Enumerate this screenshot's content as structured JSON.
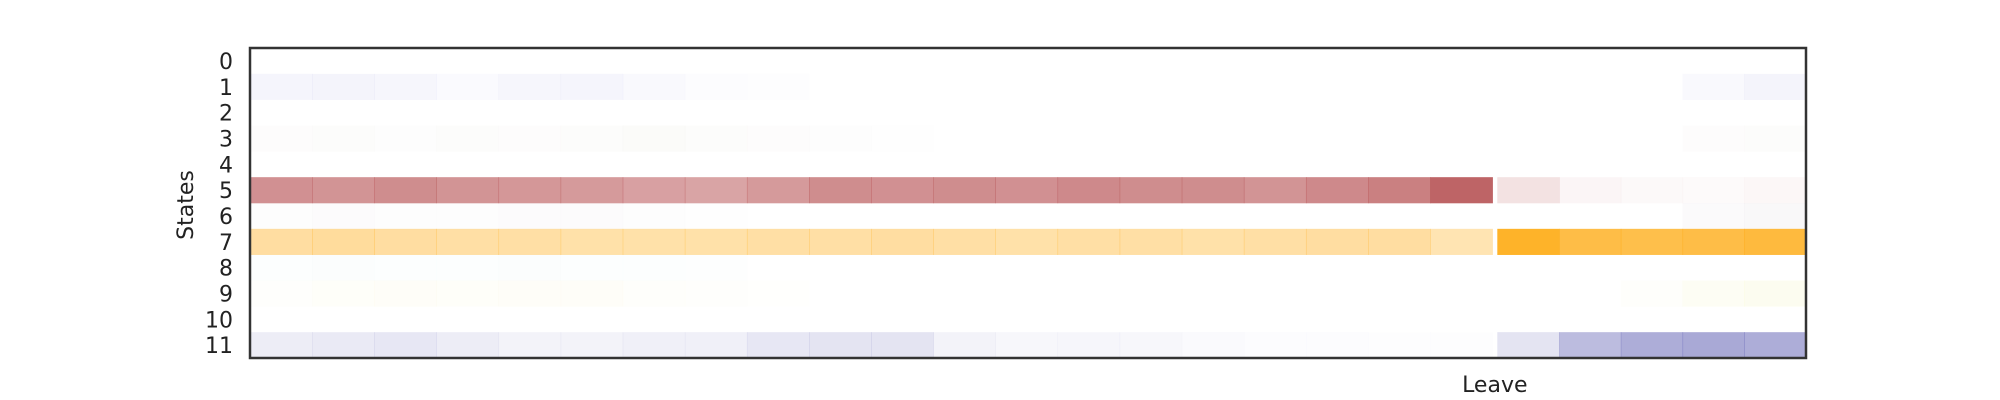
{
  "chart_data": {
    "type": "heatmap",
    "ylabel": "States",
    "y_categories": [
      "0",
      "1",
      "2",
      "3",
      "4",
      "5",
      "6",
      "7",
      "8",
      "9",
      "10",
      "11"
    ],
    "annotation": "Leave",
    "grid": false,
    "legend": "none",
    "x_ticks": "none",
    "x_range": [
      0,
      1
    ],
    "leave_position": 0.8,
    "series": [
      {
        "state": "0",
        "color": "#5b5fb0",
        "values_before": [
          0,
          0,
          0,
          0,
          0,
          0,
          0,
          0,
          0,
          0,
          0,
          0,
          0,
          0,
          0,
          0,
          0,
          0,
          0,
          0
        ],
        "values_after": [
          0,
          0,
          0,
          0,
          0
        ]
      },
      {
        "state": "1",
        "color": "#6d6dd0",
        "values_before": [
          0.07,
          0.08,
          0.06,
          0.03,
          0.06,
          0.07,
          0.04,
          0.02,
          0.01,
          0,
          0,
          0,
          0,
          0,
          0,
          0,
          0,
          0,
          0,
          0
        ],
        "values_after": [
          0,
          0,
          0,
          0.04,
          0.08
        ]
      },
      {
        "state": "2",
        "color": "#9090c0",
        "values_before": [
          0,
          0,
          0,
          0,
          0,
          0,
          0,
          0,
          0,
          0,
          0,
          0,
          0,
          0,
          0,
          0,
          0,
          0,
          0,
          0
        ],
        "values_after": [
          0,
          0,
          0,
          0,
          0
        ]
      },
      {
        "state": "3",
        "color": "#b0a890",
        "values_before": [
          0.03,
          0.04,
          0.02,
          0.04,
          0.03,
          0.04,
          0.05,
          0.04,
          0.03,
          0.02,
          0.01,
          0,
          0,
          0,
          0,
          0,
          0,
          0,
          0,
          0
        ],
        "values_after": [
          0,
          0,
          0,
          0.03,
          0.04
        ]
      },
      {
        "state": "4",
        "color": "#b0b0b0",
        "values_before": [
          0,
          0,
          0,
          0,
          0,
          0,
          0,
          0,
          0,
          0,
          0,
          0,
          0,
          0,
          0,
          0,
          0,
          0,
          0,
          0
        ],
        "values_after": [
          0,
          0,
          0,
          0,
          0
        ]
      },
      {
        "state": "5",
        "color": "#bb5c5e",
        "values_before": [
          0.68,
          0.66,
          0.7,
          0.66,
          0.64,
          0.62,
          0.58,
          0.56,
          0.62,
          0.7,
          0.68,
          0.7,
          0.68,
          0.72,
          0.7,
          0.7,
          0.66,
          0.72,
          0.78,
          0.95
        ],
        "values_after": [
          0.18,
          0.06,
          0.04,
          0.03,
          0.05
        ]
      },
      {
        "state": "6",
        "color": "#a08aa0",
        "values_before": [
          0.02,
          0.03,
          0.02,
          0.02,
          0.03,
          0.03,
          0.02,
          0.01,
          0,
          0,
          0,
          0,
          0,
          0,
          0,
          0,
          0,
          0,
          0,
          0
        ],
        "values_after": [
          0,
          0,
          0,
          0.04,
          0.06
        ]
      },
      {
        "state": "7",
        "color": "#feaf1e",
        "values_before": [
          0.42,
          0.44,
          0.42,
          0.4,
          0.4,
          0.38,
          0.38,
          0.38,
          0.4,
          0.4,
          0.42,
          0.4,
          0.38,
          0.4,
          0.4,
          0.38,
          0.4,
          0.42,
          0.42,
          0.34
        ],
        "values_after": [
          0.95,
          0.82,
          0.8,
          0.82,
          0.86
        ]
      },
      {
        "state": "8",
        "color": "#7ec8b8",
        "values_before": [
          0.02,
          0.03,
          0.02,
          0.02,
          0.03,
          0.02,
          0.02,
          0.01,
          0,
          0,
          0,
          0,
          0,
          0,
          0,
          0,
          0,
          0,
          0,
          0
        ],
        "values_after": [
          0,
          0,
          0,
          0,
          0
        ]
      },
      {
        "state": "9",
        "color": "#e4e070",
        "values_before": [
          0.02,
          0.04,
          0.05,
          0.04,
          0.05,
          0.05,
          0.03,
          0.02,
          0.01,
          0,
          0,
          0,
          0,
          0,
          0,
          0,
          0,
          0,
          0,
          0
        ],
        "values_after": [
          0,
          0,
          0.03,
          0.08,
          0.1
        ]
      },
      {
        "state": "10",
        "color": "#b0b0b0",
        "values_before": [
          0,
          0,
          0,
          0,
          0,
          0,
          0,
          0,
          0,
          0,
          0,
          0,
          0,
          0,
          0,
          0,
          0,
          0,
          0,
          0
        ],
        "values_after": [
          0,
          0,
          0,
          0,
          0
        ]
      },
      {
        "state": "11",
        "color": "#6a6ab8",
        "values_before": [
          0.12,
          0.14,
          0.16,
          0.12,
          0.08,
          0.08,
          0.1,
          0.1,
          0.16,
          0.18,
          0.18,
          0.08,
          0.05,
          0.06,
          0.05,
          0.03,
          0.02,
          0.02,
          0.01,
          0.01
        ],
        "values_after": [
          0.18,
          0.45,
          0.55,
          0.58,
          0.55
        ]
      }
    ]
  }
}
